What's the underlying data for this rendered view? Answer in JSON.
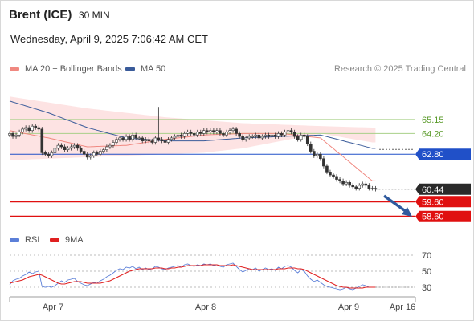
{
  "header": {
    "instrument": "Brent (ICE)",
    "interval": "30 MIN",
    "datetime": "Wednesday, April 9, 2025 7:06:42 AM CET"
  },
  "legend": {
    "ma20_label": "MA 20 + Bollinger Bands",
    "ma50_label": "MA 50",
    "credit": "Research © 2025 Trading Central"
  },
  "rsi_legend": {
    "rsi_label": "RSI",
    "ma_label": "9MA"
  },
  "colors": {
    "ma20": "#f08880",
    "bollinger_fill": "#fde0e0",
    "ma50": "#3a5b9a",
    "rsi": "#5b7fd8",
    "rsi_ma": "#e02020",
    "candle": "#333333",
    "resistance": "#2050c8",
    "support": "#e01010",
    "target_green": "#a8d088",
    "last_price": "#2a2a2a",
    "arrow": "#2f5a9e"
  },
  "chart_data": [
    {
      "type": "line",
      "panel": "price",
      "ylim": [
        57.5,
        67.8
      ],
      "x_axis": {
        "ticks": [
          "Apr 7",
          "Apr 8",
          "Apr 9",
          "Apr 16"
        ],
        "tick_index": [
          8,
          54,
          100,
          120
        ],
        "n_bars": 114
      },
      "series_close": [
        64.2,
        64.0,
        64.1,
        64.3,
        64.5,
        64.6,
        64.4,
        64.7,
        64.6,
        64.5,
        62.9,
        62.8,
        62.7,
        62.9,
        63.2,
        63.4,
        63.3,
        63.1,
        63.2,
        63.3,
        63.4,
        63.2,
        63.0,
        62.8,
        62.6,
        62.7,
        62.9,
        62.8,
        63.0,
        63.1,
        63.3,
        63.4,
        63.6,
        63.8,
        63.9,
        63.8,
        64.0,
        63.8,
        64.1,
        63.9,
        63.9,
        63.7,
        63.8,
        63.7,
        63.6,
        63.9,
        63.8,
        63.7,
        63.6,
        63.8,
        63.9,
        64.0,
        64.1,
        64.0,
        64.2,
        64.3,
        64.2,
        64.1,
        64.3,
        64.2,
        64.4,
        64.3,
        64.4,
        64.3,
        64.4,
        64.2,
        64.1,
        64.3,
        64.4,
        64.5,
        64.2,
        64.0,
        63.8,
        63.9,
        64.0,
        64.0,
        64.1,
        63.9,
        64.0,
        64.1,
        64.0,
        64.1,
        64.0,
        64.2,
        64.1,
        64.3,
        64.4,
        64.3,
        64.0,
        63.8,
        64.1,
        64.0,
        63.5,
        63.0,
        62.7,
        62.8,
        62.5,
        62.0,
        61.6,
        61.4,
        61.3,
        61.1,
        61.0,
        60.8,
        60.9,
        60.7,
        60.6,
        60.5,
        60.7,
        60.8,
        60.7,
        60.5,
        60.5,
        60.44
      ],
      "spike_bar_index": 46,
      "spike_high": 66.0,
      "bollinger_band": {
        "upper": [
          66.7,
          66.3,
          65.9,
          65.6,
          65.3,
          65.1,
          64.9,
          64.8,
          64.7,
          64.6
        ],
        "lower": [
          62.4,
          62.5,
          62.6,
          62.7,
          62.8,
          62.9,
          63.2,
          63.7,
          64.2,
          63.6
        ],
        "anchor_index": [
          0,
          12,
          24,
          36,
          48,
          60,
          72,
          84,
          96,
          112
        ]
      },
      "ma20_anchor": [
        64.4,
        63.9,
        63.3,
        63.4,
        63.8,
        64.1,
        64.2,
        64.2,
        63.9,
        61.0
      ],
      "ma50": [
        66.4,
        65.6,
        64.6,
        63.9,
        63.7,
        63.7,
        63.9,
        64.0,
        64.1,
        63.2
      ],
      "ma50_anchor_index": [
        0,
        12,
        24,
        36,
        48,
        60,
        72,
        84,
        96,
        112
      ],
      "levels": [
        {
          "label": "65.15",
          "value": 65.15,
          "kind": "resistance-target"
        },
        {
          "label": "64.20",
          "value": 64.2,
          "kind": "resistance-target"
        },
        {
          "label": "62.80",
          "value": 62.8,
          "kind": "pivot"
        },
        {
          "label": "60.44",
          "value": 60.44,
          "kind": "last"
        },
        {
          "label": "59.60",
          "value": 59.6,
          "kind": "support"
        },
        {
          "label": "58.60",
          "value": 58.6,
          "kind": "support"
        }
      ]
    },
    {
      "type": "line",
      "panel": "rsi",
      "ylim": [
        20,
        80
      ],
      "y_ticks": [
        {
          "label": "70",
          "value": 70
        },
        {
          "label": "50",
          "value": 50
        },
        {
          "label": "30",
          "value": 30
        }
      ],
      "rsi": [
        33,
        38,
        40,
        41,
        44,
        46,
        49,
        47,
        49,
        50,
        31,
        30,
        31,
        30,
        32,
        35,
        38,
        36,
        39,
        40,
        41,
        37,
        35,
        33,
        32,
        34,
        36,
        35,
        38,
        40,
        43,
        45,
        48,
        51,
        53,
        52,
        55,
        54,
        56,
        53,
        55,
        52,
        54,
        52,
        53,
        56,
        55,
        53,
        52,
        54,
        55,
        56,
        57,
        55,
        58,
        59,
        57,
        56,
        58,
        57,
        59,
        58,
        59,
        57,
        58,
        56,
        55,
        58,
        59,
        60,
        56,
        52,
        49,
        51,
        53,
        52,
        54,
        50,
        52,
        54,
        52,
        53,
        51,
        55,
        53,
        56,
        57,
        55,
        51,
        48,
        52,
        50,
        44,
        40,
        37,
        39,
        36,
        33,
        31,
        30,
        29,
        28,
        27,
        28,
        30,
        28,
        27,
        29,
        31,
        33,
        32,
        30,
        30,
        30
      ],
      "rsi_ma": [
        35,
        36,
        37,
        38,
        39,
        41,
        43,
        44,
        45,
        46,
        45,
        43,
        41,
        39,
        37,
        35,
        34,
        34,
        35,
        36,
        37,
        37,
        37,
        36,
        35,
        35,
        35,
        35,
        35,
        36,
        37,
        38,
        40,
        42,
        44,
        46,
        48,
        50,
        51,
        52,
        53,
        53,
        53,
        53,
        53,
        54,
        54,
        54,
        53,
        53,
        54,
        54,
        55,
        55,
        56,
        57,
        57,
        57,
        57,
        57,
        58,
        58,
        58,
        58,
        58,
        57,
        57,
        57,
        57,
        58,
        57,
        56,
        55,
        54,
        53,
        52,
        52,
        52,
        52,
        52,
        52,
        52,
        52,
        53,
        53,
        53,
        54,
        54,
        54,
        53,
        53,
        52,
        50,
        48,
        46,
        44,
        42,
        40,
        38,
        36,
        34,
        32,
        31,
        30,
        30,
        29,
        29,
        29,
        29,
        29,
        30,
        30,
        30,
        30
      ]
    }
  ]
}
